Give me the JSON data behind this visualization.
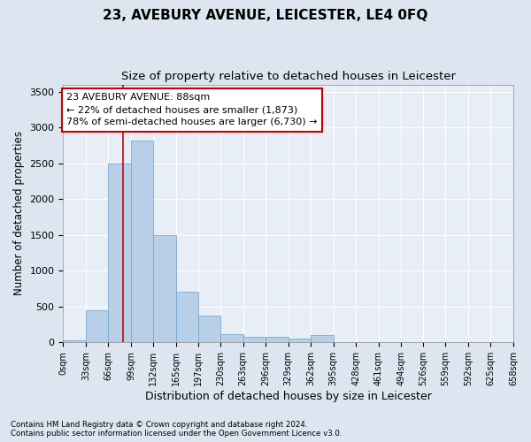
{
  "title": "23, AVEBURY AVENUE, LEICESTER, LE4 0FQ",
  "subtitle": "Size of property relative to detached houses in Leicester",
  "xlabel": "Distribution of detached houses by size in Leicester",
  "ylabel": "Number of detached properties",
  "footer_line1": "Contains HM Land Registry data © Crown copyright and database right 2024.",
  "footer_line2": "Contains public sector information licensed under the Open Government Licence v3.0.",
  "bar_edges": [
    0,
    33,
    66,
    99,
    132,
    165,
    197,
    230,
    263,
    296,
    329,
    362,
    395,
    428,
    461,
    494,
    526,
    559,
    592,
    625,
    658
  ],
  "bar_heights": [
    25,
    450,
    2500,
    2820,
    1500,
    710,
    375,
    120,
    75,
    75,
    50,
    100,
    0,
    0,
    0,
    0,
    0,
    0,
    0,
    0
  ],
  "bar_color": "#b8cfe8",
  "bar_edge_color": "#7aaad0",
  "vline_x": 88,
  "vline_color": "#cc0000",
  "annotation_line1": "23 AVEBURY AVENUE: 88sqm",
  "annotation_line2": "← 22% of detached houses are smaller (1,873)",
  "annotation_line3": "78% of semi-detached houses are larger (6,730) →",
  "annotation_box_color": "#cc0000",
  "ylim": [
    0,
    3600
  ],
  "yticks": [
    0,
    500,
    1000,
    1500,
    2000,
    2500,
    3000,
    3500
  ],
  "xtick_labels": [
    "0sqm",
    "33sqm",
    "66sqm",
    "99sqm",
    "132sqm",
    "165sqm",
    "197sqm",
    "230sqm",
    "263sqm",
    "296sqm",
    "329sqm",
    "362sqm",
    "395sqm",
    "428sqm",
    "461sqm",
    "494sqm",
    "526sqm",
    "559sqm",
    "592sqm",
    "625sqm",
    "658sqm"
  ],
  "background_color": "#dde6f0",
  "plot_background_color": "#e8eef6",
  "grid_color": "#ffffff",
  "title_fontsize": 11,
  "subtitle_fontsize": 9.5,
  "tick_fontsize": 7,
  "ylabel_fontsize": 8.5,
  "xlabel_fontsize": 9,
  "annotation_fontsize": 8
}
